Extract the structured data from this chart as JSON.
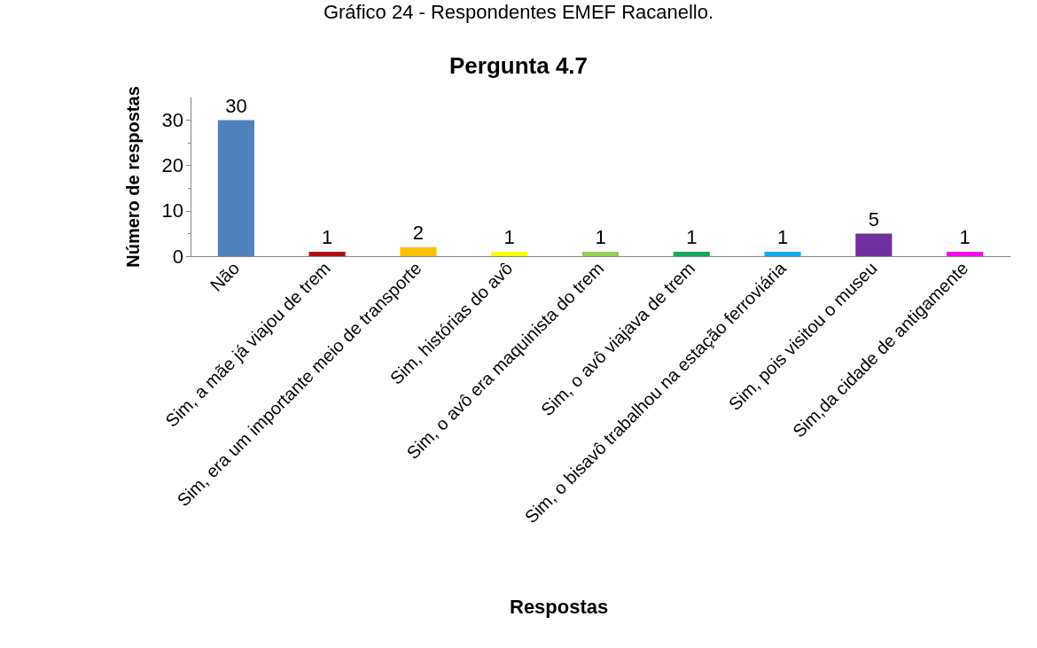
{
  "chart_data": {
    "type": "bar",
    "title": "Pergunta 4.7",
    "xlabel": "Respostas",
    "ylabel": "Número de respostas",
    "annotations": [
      "Gráfico 24 - Respondentes EMEF Racanello."
    ],
    "categories": [
      "Não",
      "Sim, a mãe já viajou de trem",
      "Sim, era um importante meio de transporte",
      "Sim, histórias do avô",
      "Sim, o avô era maquinista do trem",
      "Sim, o avô viajava de trem",
      "Sim, o bisavô trabalhou na estação ferroviária",
      "Sim, pois visitou o museu",
      "Sim,da cidade de antigamente"
    ],
    "values": [
      30,
      1,
      2,
      1,
      1,
      1,
      1,
      5,
      1
    ],
    "colors": [
      "#4f81bd",
      "#c00000",
      "#ffc000",
      "#ffff00",
      "#92d050",
      "#00b050",
      "#00b0f0",
      "#7030a0",
      "#ff00ff"
    ],
    "ylim": [
      0,
      35
    ],
    "yticks": [
      0,
      10,
      20,
      30
    ],
    "grid": false,
    "data_labels": true
  }
}
